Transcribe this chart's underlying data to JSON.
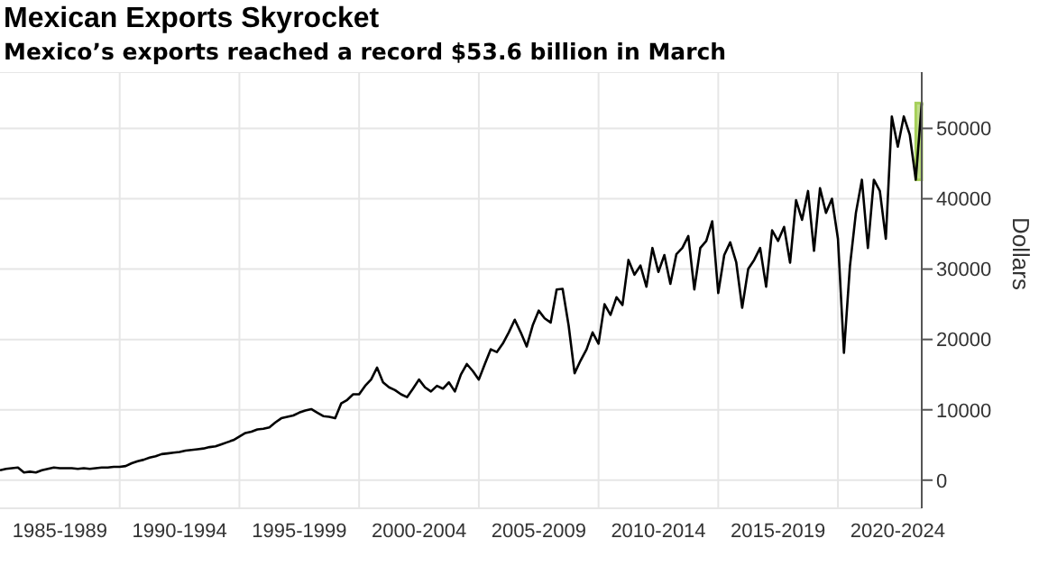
{
  "chart_data": {
    "type": "line",
    "title": "Mexican Exports Skyrocket",
    "subtitle": "Mexico’s exports reached a record $53.6 billion in March",
    "ylabel": "Dollars",
    "categories": [
      null,
      null,
      null,
      null,
      null,
      null,
      null,
      null,
      null,
      null,
      "1985-1989",
      null,
      null,
      null,
      null,
      null,
      null,
      null,
      null,
      null,
      null,
      null,
      null,
      null,
      null,
      null,
      null,
      null,
      null,
      null,
      "1990-1994",
      null,
      null,
      null,
      null,
      null,
      null,
      null,
      null,
      null,
      null,
      null,
      null,
      null,
      null,
      null,
      null,
      null,
      null,
      null,
      "1995-1999",
      null,
      null,
      null,
      null,
      null,
      null,
      null,
      null,
      null,
      null,
      null,
      null,
      null,
      null,
      null,
      null,
      null,
      null,
      null,
      "2000-2004",
      null,
      null,
      null,
      null,
      null,
      null,
      null,
      null,
      null,
      null,
      null,
      null,
      null,
      null,
      null,
      null,
      null,
      null,
      null,
      "2005-2009",
      null,
      null,
      null,
      null,
      null,
      null,
      null,
      null,
      null,
      null,
      null,
      null,
      null,
      null,
      null,
      null,
      null,
      null,
      null,
      "2010-2014",
      null,
      null,
      null,
      null,
      null,
      null,
      null,
      null,
      null,
      null,
      null,
      null,
      null,
      null,
      null,
      null,
      null,
      null,
      null,
      "2015-2019",
      null,
      null,
      null,
      null,
      null,
      null,
      null,
      null,
      null,
      null,
      null,
      null,
      null,
      null,
      null,
      null,
      null,
      null,
      null,
      "2020-2024",
      null,
      null,
      null,
      null
    ],
    "series": [
      {
        "color": "#000000",
        "values": [
          1400,
          1600,
          1700,
          1800,
          1100,
          1200,
          1100,
          1400,
          1600,
          1800,
          1700,
          1700,
          1700,
          1600,
          1700,
          1600,
          1700,
          1800,
          1800,
          1900,
          1900,
          2000,
          2400,
          2700,
          2900,
          3200,
          3400,
          3700,
          3800,
          3900,
          4000,
          4200,
          4300,
          4400,
          4500,
          4700,
          4800,
          5100,
          5400,
          5700,
          6200,
          6700,
          6900,
          7200,
          7300,
          7500,
          8200,
          8800,
          9000,
          9200,
          9600,
          9900,
          10100,
          9600,
          9100,
          9000,
          8800,
          10900,
          11400,
          12200,
          12200,
          13400,
          14300,
          16000,
          13900,
          13200,
          12800,
          12200,
          11800,
          13000,
          14300,
          13200,
          12600,
          13400,
          13000,
          13900,
          12600,
          15000,
          16500,
          15500,
          14300,
          16500,
          18600,
          18200,
          19400,
          21000,
          22800,
          21000,
          19000,
          22000,
          24100,
          23000,
          22400,
          27100,
          27200,
          22000,
          15200,
          17000,
          18600,
          21000,
          19400,
          25000,
          23500,
          26000,
          24900,
          31300,
          29200,
          30500,
          27500,
          33000,
          29600,
          32000,
          27900,
          32100,
          33000,
          34700,
          27100,
          33000,
          34000,
          36800,
          26600,
          32000,
          33800,
          31000,
          24500,
          30000,
          31300,
          33000,
          27500,
          35500,
          34000,
          36000,
          30900,
          39800,
          37000,
          41100,
          32600,
          41500,
          38000,
          40000,
          34300,
          18100,
          30400,
          38000,
          42700,
          33000,
          42700,
          41100,
          34300,
          51700,
          47400,
          51700,
          49100,
          42700,
          53600
        ]
      }
    ],
    "ylim": [
      -4000,
      58000
    ],
    "yticks": [
      0,
      10000,
      20000,
      30000,
      40000,
      50000
    ],
    "grid": true
  }
}
